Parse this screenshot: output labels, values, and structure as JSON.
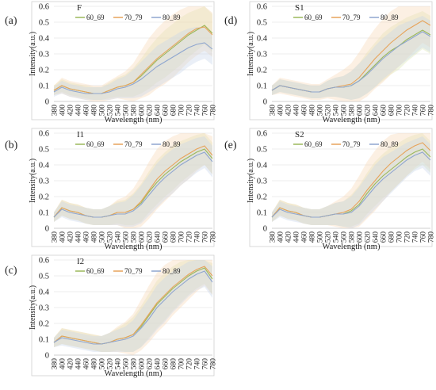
{
  "colors": {
    "series": [
      "#9bb85a",
      "#e7a35a",
      "#8fa6cf"
    ],
    "band": [
      "#d9e4b3",
      "#f6d8b6",
      "#c9d6ea"
    ],
    "axis": "#bfbfbf",
    "grid": "#e6e6e6"
  },
  "chart_data": [
    {
      "panel_label": "(a)",
      "title": "F",
      "type": "line",
      "xlabel": "Wavelength (nm)",
      "ylabel": "Intensity(a.u.)",
      "x_ticks": [
        380,
        400,
        420,
        440,
        460,
        480,
        500,
        520,
        540,
        560,
        580,
        600,
        620,
        640,
        660,
        680,
        700,
        720,
        740,
        760,
        780
      ],
      "y_ticks": [
        0,
        0.1,
        0.2,
        0.3,
        0.4,
        0.5,
        0.6
      ],
      "ylim": [
        0,
        0.6
      ],
      "legend": "top-left",
      "grid": true,
      "x": [
        380,
        400,
        420,
        440,
        460,
        480,
        500,
        520,
        540,
        560,
        580,
        600,
        620,
        640,
        660,
        680,
        700,
        720,
        740,
        760,
        780
      ],
      "series": [
        {
          "name": "60_69",
          "values": [
            0.07,
            0.1,
            0.08,
            0.07,
            0.06,
            0.05,
            0.05,
            0.07,
            0.09,
            0.1,
            0.12,
            0.16,
            0.21,
            0.26,
            0.3,
            0.34,
            0.38,
            0.42,
            0.45,
            0.48,
            0.43
          ],
          "band": [
            0.03,
            0.04,
            0.04,
            0.04,
            0.04,
            0.04,
            0.04,
            0.05,
            0.06,
            0.07,
            0.09,
            0.11,
            0.13,
            0.14,
            0.15,
            0.15,
            0.15,
            0.14,
            0.13,
            0.12,
            0.12
          ]
        },
        {
          "name": "70_79",
          "values": [
            0.07,
            0.1,
            0.08,
            0.07,
            0.06,
            0.05,
            0.05,
            0.07,
            0.09,
            0.1,
            0.12,
            0.17,
            0.22,
            0.27,
            0.31,
            0.35,
            0.39,
            0.43,
            0.46,
            0.47,
            0.42
          ],
          "band": [
            0.03,
            0.05,
            0.05,
            0.05,
            0.05,
            0.05,
            0.05,
            0.06,
            0.07,
            0.09,
            0.12,
            0.15,
            0.18,
            0.19,
            0.2,
            0.2,
            0.19,
            0.18,
            0.17,
            0.15,
            0.14
          ]
        },
        {
          "name": "80_89",
          "values": [
            0.06,
            0.09,
            0.07,
            0.06,
            0.05,
            0.05,
            0.05,
            0.06,
            0.08,
            0.09,
            0.11,
            0.14,
            0.18,
            0.22,
            0.25,
            0.28,
            0.31,
            0.34,
            0.36,
            0.37,
            0.33
          ],
          "band": [
            0.03,
            0.04,
            0.04,
            0.04,
            0.04,
            0.04,
            0.04,
            0.05,
            0.06,
            0.07,
            0.09,
            0.11,
            0.12,
            0.13,
            0.13,
            0.13,
            0.13,
            0.12,
            0.11,
            0.1,
            0.1
          ]
        }
      ]
    },
    {
      "panel_label": "(b)",
      "title": "I1",
      "type": "line",
      "xlabel": "Wavelength (nm)",
      "ylabel": "Intensity(a.u.)",
      "x_ticks": [
        380,
        400,
        420,
        440,
        460,
        480,
        500,
        520,
        540,
        560,
        580,
        600,
        620,
        640,
        660,
        680,
        700,
        720,
        740,
        760,
        780
      ],
      "y_ticks": [
        0,
        0.1,
        0.2,
        0.3,
        0.4,
        0.5,
        0.6
      ],
      "ylim": [
        0,
        0.6
      ],
      "legend": "top-left",
      "grid": true,
      "x": [
        380,
        400,
        420,
        440,
        460,
        480,
        500,
        520,
        540,
        560,
        580,
        600,
        620,
        640,
        660,
        680,
        700,
        720,
        740,
        760,
        780
      ],
      "series": [
        {
          "name": "60_69",
          "values": [
            0.07,
            0.13,
            0.11,
            0.1,
            0.08,
            0.07,
            0.07,
            0.08,
            0.1,
            0.1,
            0.12,
            0.16,
            0.23,
            0.29,
            0.34,
            0.38,
            0.42,
            0.45,
            0.48,
            0.5,
            0.44
          ],
          "band": [
            0.03,
            0.05,
            0.05,
            0.05,
            0.05,
            0.05,
            0.05,
            0.06,
            0.07,
            0.08,
            0.1,
            0.12,
            0.13,
            0.14,
            0.14,
            0.14,
            0.13,
            0.12,
            0.11,
            0.1,
            0.1
          ]
        },
        {
          "name": "70_79",
          "values": [
            0.07,
            0.13,
            0.11,
            0.1,
            0.08,
            0.07,
            0.07,
            0.08,
            0.1,
            0.1,
            0.12,
            0.17,
            0.24,
            0.31,
            0.36,
            0.4,
            0.44,
            0.47,
            0.5,
            0.52,
            0.46
          ],
          "band": [
            0.03,
            0.05,
            0.05,
            0.05,
            0.05,
            0.05,
            0.05,
            0.06,
            0.08,
            0.1,
            0.13,
            0.16,
            0.18,
            0.19,
            0.19,
            0.18,
            0.17,
            0.16,
            0.14,
            0.12,
            0.12
          ]
        },
        {
          "name": "80_89",
          "values": [
            0.07,
            0.12,
            0.1,
            0.09,
            0.08,
            0.07,
            0.07,
            0.08,
            0.09,
            0.09,
            0.11,
            0.15,
            0.21,
            0.27,
            0.32,
            0.36,
            0.4,
            0.43,
            0.46,
            0.48,
            0.42
          ],
          "band": [
            0.03,
            0.05,
            0.05,
            0.05,
            0.05,
            0.05,
            0.05,
            0.06,
            0.07,
            0.08,
            0.1,
            0.12,
            0.13,
            0.14,
            0.14,
            0.14,
            0.13,
            0.12,
            0.11,
            0.1,
            0.1
          ]
        }
      ]
    },
    {
      "panel_label": "(c)",
      "title": "I2",
      "type": "line",
      "xlabel": "Wavelength (nm)",
      "ylabel": "Intensity(a.u.)",
      "x_ticks": [
        380,
        400,
        420,
        440,
        460,
        480,
        500,
        520,
        540,
        560,
        580,
        600,
        620,
        640,
        660,
        680,
        700,
        720,
        740,
        760,
        780
      ],
      "y_ticks": [
        0,
        0.1,
        0.2,
        0.3,
        0.4,
        0.5,
        0.6
      ],
      "ylim": [
        0,
        0.6
      ],
      "legend": "top-left",
      "grid": true,
      "x": [
        380,
        400,
        420,
        440,
        460,
        480,
        500,
        520,
        540,
        560,
        580,
        600,
        620,
        640,
        660,
        680,
        700,
        720,
        740,
        760,
        780
      ],
      "series": [
        {
          "name": "60_69",
          "values": [
            0.08,
            0.12,
            0.11,
            0.1,
            0.09,
            0.08,
            0.07,
            0.08,
            0.1,
            0.11,
            0.13,
            0.18,
            0.25,
            0.32,
            0.37,
            0.42,
            0.46,
            0.5,
            0.53,
            0.55,
            0.48
          ],
          "band": [
            0.03,
            0.05,
            0.05,
            0.05,
            0.05,
            0.05,
            0.05,
            0.06,
            0.07,
            0.09,
            0.11,
            0.13,
            0.14,
            0.15,
            0.15,
            0.14,
            0.13,
            0.12,
            0.11,
            0.1,
            0.1
          ]
        },
        {
          "name": "70_79",
          "values": [
            0.08,
            0.12,
            0.11,
            0.1,
            0.09,
            0.08,
            0.07,
            0.08,
            0.1,
            0.11,
            0.13,
            0.19,
            0.26,
            0.33,
            0.38,
            0.43,
            0.47,
            0.51,
            0.54,
            0.56,
            0.5
          ],
          "band": [
            0.03,
            0.05,
            0.05,
            0.05,
            0.05,
            0.05,
            0.05,
            0.06,
            0.08,
            0.1,
            0.13,
            0.16,
            0.18,
            0.19,
            0.19,
            0.18,
            0.17,
            0.16,
            0.14,
            0.12,
            0.12
          ]
        },
        {
          "name": "80_89",
          "values": [
            0.08,
            0.11,
            0.1,
            0.09,
            0.08,
            0.07,
            0.07,
            0.08,
            0.09,
            0.1,
            0.12,
            0.17,
            0.23,
            0.3,
            0.35,
            0.4,
            0.44,
            0.48,
            0.51,
            0.53,
            0.46
          ],
          "band": [
            0.03,
            0.05,
            0.05,
            0.05,
            0.05,
            0.05,
            0.05,
            0.06,
            0.07,
            0.08,
            0.1,
            0.12,
            0.13,
            0.14,
            0.14,
            0.13,
            0.12,
            0.11,
            0.1,
            0.1,
            0.1
          ]
        }
      ]
    },
    {
      "panel_label": "(d)",
      "title": "S1",
      "type": "line",
      "xlabel": "Wavelength (nm)",
      "ylabel": "Intensity(a.u.)",
      "x_ticks": [
        380,
        400,
        420,
        440,
        460,
        480,
        500,
        520,
        540,
        560,
        580,
        600,
        620,
        640,
        660,
        680,
        700,
        720,
        740,
        760,
        780
      ],
      "y_ticks": [
        0,
        0.1,
        0.2,
        0.3,
        0.4,
        0.5,
        0.6
      ],
      "ylim": [
        0,
        0.6
      ],
      "legend": "top-left",
      "grid": true,
      "x": [
        380,
        400,
        420,
        440,
        460,
        480,
        500,
        520,
        540,
        560,
        580,
        600,
        620,
        640,
        660,
        680,
        700,
        720,
        740,
        760,
        780
      ],
      "series": [
        {
          "name": "60_69",
          "values": [
            0.07,
            0.1,
            0.09,
            0.08,
            0.07,
            0.06,
            0.06,
            0.08,
            0.09,
            0.09,
            0.1,
            0.13,
            0.18,
            0.23,
            0.28,
            0.32,
            0.35,
            0.39,
            0.42,
            0.45,
            0.42
          ],
          "band": [
            0.03,
            0.04,
            0.04,
            0.04,
            0.04,
            0.04,
            0.04,
            0.05,
            0.06,
            0.07,
            0.09,
            0.11,
            0.13,
            0.14,
            0.15,
            0.15,
            0.15,
            0.14,
            0.13,
            0.12,
            0.12
          ]
        },
        {
          "name": "70_79",
          "values": [
            0.07,
            0.1,
            0.09,
            0.08,
            0.07,
            0.06,
            0.06,
            0.08,
            0.09,
            0.1,
            0.11,
            0.15,
            0.21,
            0.27,
            0.32,
            0.37,
            0.41,
            0.45,
            0.48,
            0.51,
            0.48
          ],
          "band": [
            0.03,
            0.05,
            0.05,
            0.05,
            0.05,
            0.05,
            0.05,
            0.06,
            0.08,
            0.1,
            0.13,
            0.16,
            0.18,
            0.19,
            0.2,
            0.2,
            0.19,
            0.18,
            0.16,
            0.14,
            0.14
          ]
        },
        {
          "name": "80_89",
          "values": [
            0.07,
            0.1,
            0.09,
            0.08,
            0.07,
            0.06,
            0.06,
            0.08,
            0.09,
            0.09,
            0.1,
            0.13,
            0.17,
            0.22,
            0.27,
            0.31,
            0.35,
            0.38,
            0.41,
            0.44,
            0.41
          ],
          "band": [
            0.03,
            0.04,
            0.04,
            0.04,
            0.04,
            0.04,
            0.04,
            0.05,
            0.06,
            0.07,
            0.09,
            0.11,
            0.12,
            0.13,
            0.13,
            0.13,
            0.13,
            0.12,
            0.11,
            0.1,
            0.1
          ]
        }
      ]
    },
    {
      "panel_label": "(e)",
      "title": "S2",
      "type": "line",
      "xlabel": "Wavelength (nm)",
      "ylabel": "Intensity(a.u.)",
      "x_ticks": [
        380,
        400,
        420,
        440,
        460,
        480,
        500,
        520,
        540,
        560,
        580,
        600,
        620,
        640,
        660,
        680,
        700,
        720,
        740,
        760,
        780
      ],
      "y_ticks": [
        0,
        0.1,
        0.2,
        0.3,
        0.4,
        0.5,
        0.6
      ],
      "ylim": [
        0,
        0.6
      ],
      "legend": "top-left",
      "grid": true,
      "x": [
        380,
        400,
        420,
        440,
        460,
        480,
        500,
        520,
        540,
        560,
        580,
        600,
        620,
        640,
        660,
        680,
        700,
        720,
        740,
        760,
        780
      ],
      "series": [
        {
          "name": "60_69",
          "values": [
            0.07,
            0.13,
            0.11,
            0.1,
            0.08,
            0.07,
            0.07,
            0.08,
            0.09,
            0.09,
            0.11,
            0.15,
            0.22,
            0.28,
            0.33,
            0.37,
            0.41,
            0.45,
            0.48,
            0.5,
            0.45
          ],
          "band": [
            0.03,
            0.05,
            0.05,
            0.05,
            0.05,
            0.05,
            0.05,
            0.06,
            0.07,
            0.08,
            0.1,
            0.12,
            0.13,
            0.14,
            0.14,
            0.14,
            0.13,
            0.12,
            0.11,
            0.1,
            0.1
          ]
        },
        {
          "name": "70_79",
          "values": [
            0.07,
            0.13,
            0.11,
            0.1,
            0.08,
            0.07,
            0.07,
            0.08,
            0.09,
            0.1,
            0.12,
            0.17,
            0.24,
            0.3,
            0.36,
            0.41,
            0.45,
            0.49,
            0.52,
            0.54,
            0.49
          ],
          "band": [
            0.03,
            0.05,
            0.05,
            0.05,
            0.05,
            0.05,
            0.05,
            0.06,
            0.08,
            0.1,
            0.13,
            0.16,
            0.18,
            0.19,
            0.19,
            0.18,
            0.17,
            0.16,
            0.14,
            0.12,
            0.12
          ]
        },
        {
          "name": "80_89",
          "values": [
            0.07,
            0.12,
            0.1,
            0.09,
            0.08,
            0.07,
            0.07,
            0.08,
            0.09,
            0.09,
            0.1,
            0.14,
            0.2,
            0.26,
            0.31,
            0.35,
            0.39,
            0.43,
            0.46,
            0.48,
            0.43
          ],
          "band": [
            0.03,
            0.05,
            0.05,
            0.05,
            0.05,
            0.05,
            0.05,
            0.06,
            0.07,
            0.08,
            0.1,
            0.12,
            0.13,
            0.14,
            0.14,
            0.13,
            0.12,
            0.11,
            0.1,
            0.1,
            0.1
          ]
        }
      ]
    }
  ]
}
